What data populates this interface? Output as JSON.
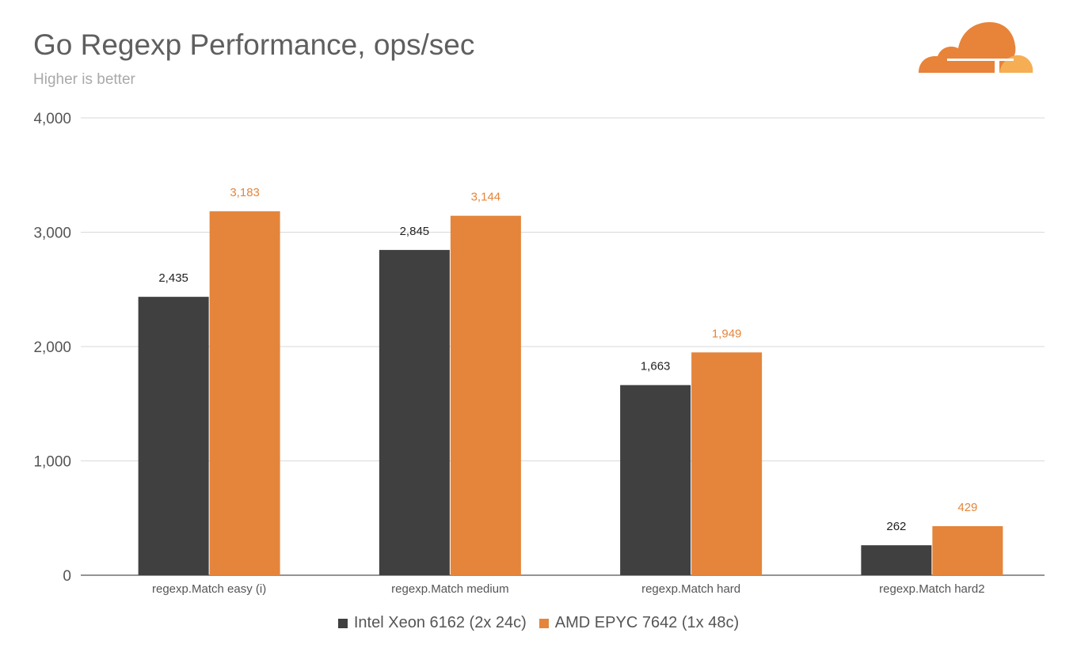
{
  "chart_data": {
    "type": "bar",
    "title": "Go Regexp Performance, ops/sec",
    "subtitle": "Higher is better",
    "categories": [
      "regexp.Match easy (i)",
      "regexp.Match medium",
      "regexp.Match hard",
      "regexp.Match hard2"
    ],
    "series": [
      {
        "name": "Intel Xeon 6162 (2x 24c)",
        "color": "#404040",
        "label_color": "#222222",
        "values": [
          2435,
          2845,
          1663,
          262
        ]
      },
      {
        "name": "AMD EPYC 7642 (1x 48c)",
        "color": "#e4853b",
        "label_color": "#e4853b",
        "values": [
          3183,
          3144,
          1949,
          429
        ]
      }
    ],
    "ylim": [
      0,
      4000
    ],
    "yticks": [
      0,
      1000,
      2000,
      3000,
      4000
    ],
    "ytick_labels": [
      "0",
      "1,000",
      "2,000",
      "3,000",
      "4,000"
    ],
    "data_labels": [
      [
        "2,435",
        "2,845",
        "1,663",
        "262"
      ],
      [
        "3,183",
        "3,144",
        "1,949",
        "429"
      ]
    ],
    "grid": true,
    "legend_position": "bottom-center"
  },
  "logo": {
    "icon": "cloudflare-cloud-icon",
    "colors": [
      "#f38020",
      "#faae40"
    ]
  }
}
